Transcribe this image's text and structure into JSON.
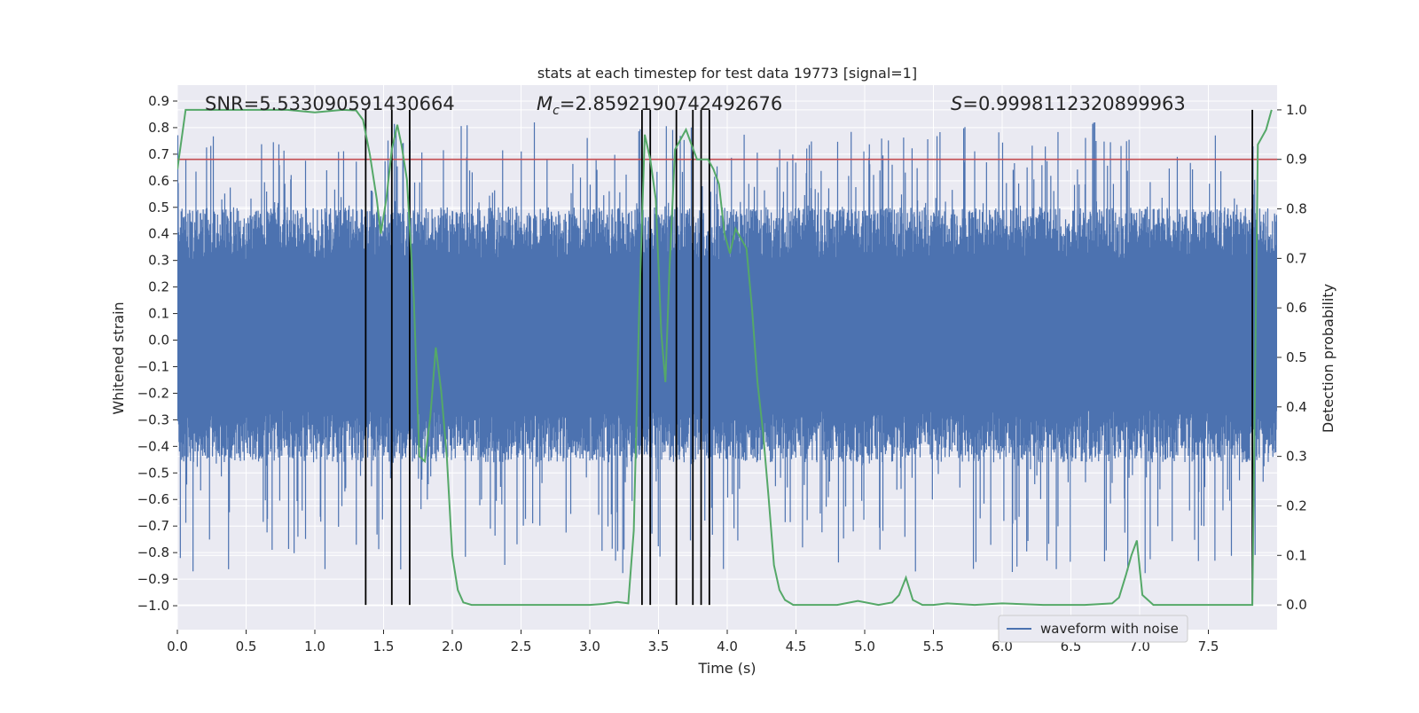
{
  "chart_data": {
    "type": "line",
    "title": "stats at each timestep for test data 19773 [signal=1]",
    "xlabel": "Time (s)",
    "ylabel_left": "Whitened strain",
    "ylabel_right": "Detection probability",
    "xlim": [
      0.0,
      8.0
    ],
    "ylim_left": [
      -1.09,
      0.96
    ],
    "ylim_right": [
      -0.05,
      1.05
    ],
    "x_ticks": [
      "0.0",
      "0.5",
      "1.0",
      "1.5",
      "2.0",
      "2.5",
      "3.0",
      "3.5",
      "4.0",
      "4.5",
      "5.0",
      "5.5",
      "6.0",
      "6.5",
      "7.0",
      "7.5"
    ],
    "y_ticks_left": [
      "0.9",
      "0.8",
      "0.7",
      "0.6",
      "0.5",
      "0.4",
      "0.3",
      "0.2",
      "0.1",
      "0.0",
      "−0.1",
      "−0.2",
      "−0.3",
      "−0.4",
      "−0.5",
      "−0.6",
      "−0.7",
      "−0.8",
      "−0.9",
      "−1.0"
    ],
    "y_ticks_right": [
      "1.0",
      "0.9",
      "0.8",
      "0.7",
      "0.6",
      "0.5",
      "0.4",
      "0.3",
      "0.2",
      "0.1",
      "0.0"
    ],
    "grid": true,
    "legend": {
      "position": "lower-right",
      "entries": [
        {
          "label": "waveform with noise",
          "color": "#4c72b0"
        }
      ]
    },
    "annotations": {
      "snr": "SNR=5.533090591430664",
      "mc_symbol": "M",
      "mc_sub": "c",
      "mc_value": "=2.8592190742492676",
      "s_symbol": "S",
      "s_value": "=0.9998112320899963"
    },
    "waveform": {
      "name": "waveform with noise",
      "color": "#4c72b0",
      "band_core": [
        -0.26,
        0.3
      ],
      "peak_max": 0.82,
      "peak_min": -0.88
    },
    "threshold_line": {
      "y_right": 0.9,
      "color": "#c44e52"
    },
    "vertical_lines": {
      "x": [
        1.37,
        1.56,
        1.69,
        3.38,
        3.44,
        3.63,
        3.75,
        3.81,
        3.87,
        7.82
      ],
      "y_right": [
        0.0,
        1.0
      ],
      "color": "#000000"
    },
    "detection_probability": {
      "color": "#55a868",
      "x": [
        0.0,
        0.06,
        0.12,
        0.2,
        0.3,
        0.5,
        0.8,
        1.0,
        1.2,
        1.3,
        1.35,
        1.4,
        1.45,
        1.48,
        1.52,
        1.56,
        1.6,
        1.63,
        1.67,
        1.72,
        1.76,
        1.8,
        1.84,
        1.88,
        1.92,
        1.96,
        2.0,
        2.04,
        2.08,
        2.14,
        2.2,
        2.4,
        2.6,
        2.8,
        3.0,
        3.1,
        3.2,
        3.28,
        3.32,
        3.36,
        3.4,
        3.44,
        3.48,
        3.52,
        3.55,
        3.58,
        3.62,
        3.66,
        3.7,
        3.74,
        3.78,
        3.82,
        3.86,
        3.9,
        3.94,
        3.98,
        4.02,
        4.06,
        4.1,
        4.14,
        4.18,
        4.22,
        4.26,
        4.3,
        4.34,
        4.38,
        4.42,
        4.48,
        4.6,
        4.8,
        4.95,
        5.1,
        5.2,
        5.25,
        5.3,
        5.35,
        5.42,
        5.5,
        5.6,
        5.8,
        6.0,
        6.3,
        6.6,
        6.8,
        6.85,
        6.9,
        6.94,
        6.98,
        7.02,
        7.1,
        7.3,
        7.5,
        7.7,
        7.78,
        7.82,
        7.86,
        7.92,
        7.96
      ],
      "y": [
        0.88,
        1.0,
        1.0,
        1.0,
        1.0,
        1.0,
        1.0,
        0.995,
        1.0,
        0.999,
        0.98,
        0.91,
        0.82,
        0.75,
        0.82,
        0.92,
        0.97,
        0.93,
        0.86,
        0.62,
        0.3,
        0.29,
        0.38,
        0.52,
        0.43,
        0.3,
        0.1,
        0.03,
        0.005,
        0.0,
        0.0,
        0.0,
        0.0,
        0.0,
        0.0,
        0.002,
        0.006,
        0.003,
        0.15,
        0.6,
        0.95,
        0.9,
        0.82,
        0.55,
        0.45,
        0.68,
        0.92,
        0.94,
        0.96,
        0.93,
        0.9,
        0.9,
        0.9,
        0.88,
        0.85,
        0.75,
        0.71,
        0.76,
        0.74,
        0.72,
        0.6,
        0.45,
        0.35,
        0.22,
        0.08,
        0.03,
        0.01,
        0.0,
        0.0,
        0.0,
        0.008,
        0.0,
        0.005,
        0.02,
        0.055,
        0.01,
        0.0,
        0.0,
        0.003,
        0.0,
        0.003,
        0.0,
        0.0,
        0.003,
        0.015,
        0.06,
        0.1,
        0.13,
        0.02,
        0.0,
        0.0,
        0.0,
        0.0,
        0.0,
        0.0,
        0.93,
        0.96,
        1.0
      ]
    }
  }
}
